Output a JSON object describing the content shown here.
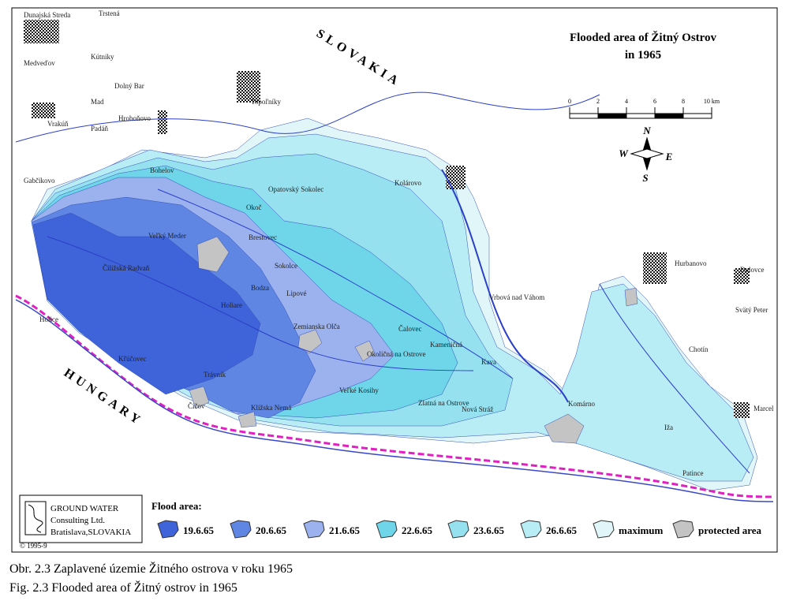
{
  "title": [
    "Flooded area of Žitný Ostrov",
    "in 1965"
  ],
  "scale": {
    "ticks": [
      0,
      2,
      4,
      6,
      {
        "value": 10,
        "label": "10 km"
      },
      8
    ]
  },
  "compass": {
    "n": "N",
    "w": "W",
    "e": "E",
    "s": "S"
  },
  "countries": [
    "SLOVAKIA",
    "HUNGARY"
  ],
  "places": [
    "Dunajská Streda",
    "Gabčíkovo",
    "Veľký Meder",
    "Kolárovo",
    "Komárno",
    "Opatovský Sokolec",
    "Sokolce",
    "Bodza",
    "Holiare",
    "Trávnik",
    "Kľúčovec",
    "Číčov",
    "Klížska Nemá",
    "Zemianska Olča",
    "Okoličná na Ostrove",
    "Čalovec",
    "Kameničná",
    "Veľké Kosihy",
    "Zlatná na Ostrove",
    "Nová Stráž",
    "Kava",
    "Chotín",
    "Iža",
    "Patince",
    "Marcel",
    "Hurbanovo",
    "Dulovce",
    "Svätý Peter",
    "Vrbová nad Váhom",
    "Topoľníky",
    "Dolný Bar",
    "Hroboňovo",
    "Vrakúň",
    "Padáň",
    "Bohelov",
    "Čiližská Radvaň",
    "Lipové",
    "Brestovec",
    "Okoč",
    "Kútniky",
    "Mad",
    "Medveďov",
    "Trstená",
    "Holice"
  ],
  "legend": {
    "title": "Flood area:",
    "items": [
      {
        "label": "19.6.65",
        "color": "#3f63d8"
      },
      {
        "label": "20.6.65",
        "color": "#5f86e2"
      },
      {
        "label": "21.6.65",
        "color": "#9bb2ef"
      },
      {
        "label": "22.6.65",
        "color": "#6fd6ea"
      },
      {
        "label": "23.6.65",
        "color": "#95e1ef"
      },
      {
        "label": "26.6.65",
        "color": "#b8edf5"
      },
      {
        "label": "maximum",
        "color": "#e0f6f9"
      },
      {
        "label": "protected area",
        "color": "#c4c4c4"
      }
    ]
  },
  "logo": [
    "GROUND WATER",
    "Consulting Ltd.",
    "Bratislava,SLOVAKIA"
  ],
  "copyright": "© 1995-9",
  "caption": [
    "Obr. 2.3  Zaplavené územie Žitného ostrova v roku 1965",
    "Fig. 2.3  Flooded area of Žitný ostrov in 1965"
  ]
}
